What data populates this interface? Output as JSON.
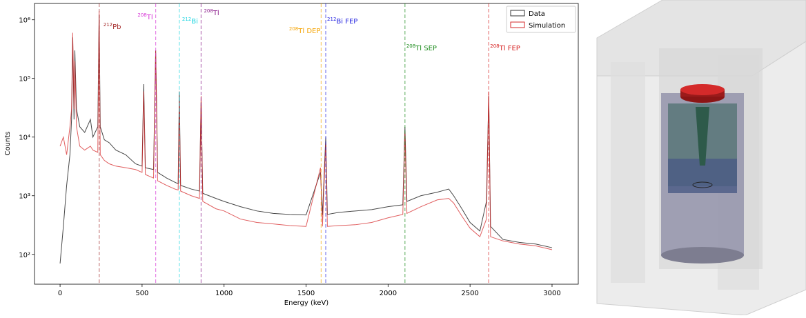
{
  "chart_data": {
    "type": "line",
    "xlabel": "Energy (keV)",
    "ylabel": "Counts",
    "log_y": true,
    "xlim": [
      -156,
      3160
    ],
    "ylim": [
      31,
      1900000
    ],
    "xticks": [
      0,
      500,
      1000,
      1500,
      2000,
      2500,
      3000
    ],
    "yticks": [
      {
        "value": 100,
        "label": "10²"
      },
      {
        "value": 1000,
        "label": "10³"
      },
      {
        "value": 10000,
        "label": "10⁴"
      },
      {
        "value": 100000,
        "label": "10⁵"
      },
      {
        "value": 1000000,
        "label": "10⁶"
      }
    ],
    "legend": "upper right",
    "x": [
      0,
      20,
      40,
      60,
      70,
      77,
      85,
      90,
      100,
      120,
      150,
      185,
      200,
      230,
      238,
      245,
      270,
      300,
      340,
      400,
      460,
      500,
      510,
      520,
      570,
      583,
      595,
      650,
      700,
      720,
      727,
      735,
      800,
      850,
      860,
      870,
      950,
      1000,
      1100,
      1200,
      1300,
      1400,
      1500,
      1588,
      1600,
      1620,
      1630,
      1700,
      1800,
      1900,
      2000,
      2090,
      2103,
      2115,
      2200,
      2300,
      2370,
      2400,
      2450,
      2500,
      2560,
      2600,
      2614,
      2625,
      2700,
      2800,
      2900,
      3000
    ],
    "series": [
      {
        "name": "Data",
        "color": "#333333",
        "values": [
          70,
          300,
          1500,
          5000,
          20000,
          500000,
          20000,
          300000,
          30000,
          15000,
          12000,
          20000,
          10000,
          15000,
          1200000,
          15000,
          9000,
          8000,
          6000,
          5000,
          3500,
          3200,
          80000,
          3000,
          2800,
          300000,
          2500,
          2000,
          1700,
          1600,
          60000,
          1500,
          1300,
          1200,
          40000,
          1100,
          900,
          800,
          650,
          550,
          500,
          480,
          470,
          2500,
          470,
          10000,
          480,
          520,
          550,
          580,
          650,
          700,
          15000,
          800,
          1000,
          1150,
          1300,
          1000,
          600,
          350,
          250,
          800,
          50000,
          300,
          180,
          160,
          150,
          130
        ]
      },
      {
        "name": "Simulation",
        "color": "#d62728",
        "values": [
          7000,
          10000,
          5000,
          15000,
          30000,
          600000,
          30000,
          200000,
          15000,
          7000,
          6000,
          7000,
          6000,
          5500,
          1400000,
          5000,
          4000,
          3500,
          3200,
          3000,
          2800,
          2500,
          60000,
          2300,
          2000,
          300000,
          1800,
          1500,
          1300,
          1250,
          40000,
          1200,
          1000,
          900,
          50000,
          800,
          600,
          550,
          400,
          350,
          330,
          310,
          300,
          3000,
          300,
          8000,
          300,
          310,
          320,
          350,
          420,
          480,
          12000,
          500,
          650,
          850,
          900,
          750,
          450,
          280,
          200,
          400,
          60000,
          200,
          170,
          150,
          140,
          120
        ]
      }
    ],
    "annotations": [
      {
        "energy": 238.6,
        "mass": "212",
        "element": "Pb",
        "color": "#a52a2a"
      },
      {
        "energy": 583,
        "mass": "208",
        "element": "Tl",
        "color": "#d62fd6"
      },
      {
        "energy": 727,
        "mass": "212",
        "element": "Bi",
        "color": "#17d4e0"
      },
      {
        "energy": 860,
        "mass": "208",
        "element": "Tl",
        "color": "#8a1a8a"
      },
      {
        "energy": 1592,
        "mass": "208",
        "element": "Tl DEP",
        "color": "#f5a300"
      },
      {
        "energy": 1620,
        "mass": "212",
        "element": "Bi FEP",
        "color": "#2020e0"
      },
      {
        "energy": 2103,
        "mass": "208",
        "element": "Tl SEP",
        "color": "#1a8a1a"
      },
      {
        "energy": 2614,
        "mass": "208",
        "element": "Tl FEP",
        "color": "#d62020"
      }
    ]
  }
}
